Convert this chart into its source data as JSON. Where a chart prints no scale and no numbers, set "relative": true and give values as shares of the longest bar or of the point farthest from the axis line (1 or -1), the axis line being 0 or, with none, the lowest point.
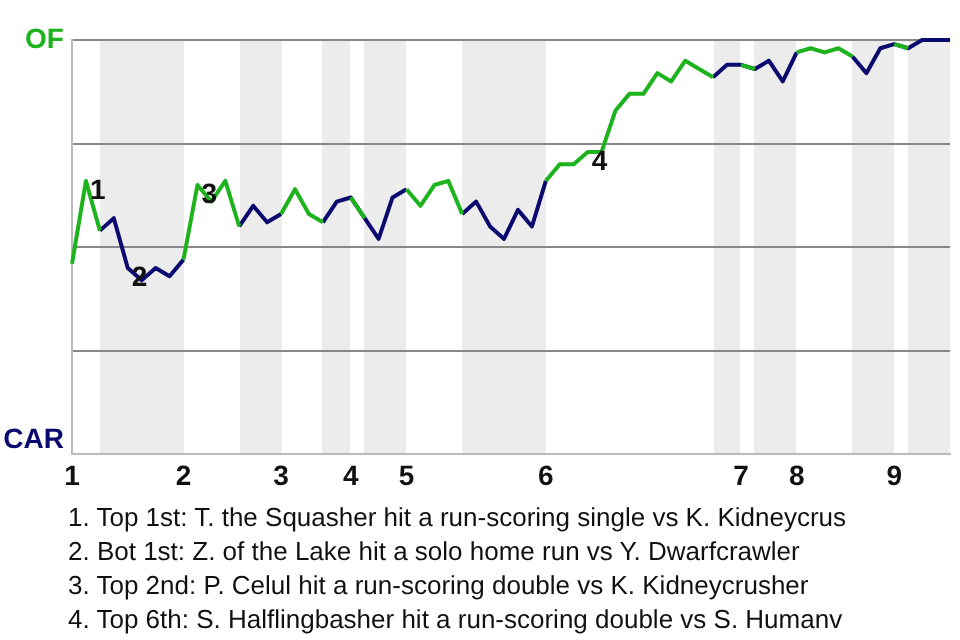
{
  "chart_data": {
    "type": "line",
    "relative": true,
    "categories": [
      "1",
      null,
      null,
      null,
      null,
      null,
      null,
      null,
      "2",
      null,
      null,
      null,
      null,
      null,
      null,
      "3",
      null,
      null,
      null,
      null,
      "4",
      null,
      null,
      null,
      "5",
      null,
      null,
      null,
      null,
      null,
      null,
      null,
      null,
      null,
      "6",
      null,
      null,
      null,
      null,
      null,
      null,
      null,
      null,
      null,
      null,
      null,
      null,
      null,
      "7",
      null,
      null,
      null,
      "8",
      null,
      null,
      null,
      null,
      null,
      null,
      "9",
      null,
      null,
      null,
      null
    ],
    "series": [
      {
        "color": "#1db31d",
        "values": [
          0.46,
          0.66,
          0.54,
          null,
          null,
          null,
          null,
          null,
          0.47,
          0.65,
          0.61,
          0.66,
          0.55,
          null,
          null,
          0.58,
          0.64,
          0.58,
          0.56,
          null,
          0.62,
          0.57,
          null,
          null,
          0.64,
          0.6,
          0.65,
          0.66,
          0.58,
          null,
          null,
          null,
          null,
          null,
          0.66,
          0.7,
          0.7,
          0.73,
          0.73,
          0.83,
          0.87,
          0.87,
          0.92,
          0.9,
          0.95,
          0.93,
          0.91,
          null,
          0.94,
          0.93,
          null,
          null,
          0.97,
          0.98,
          0.97,
          0.98,
          0.96,
          null,
          null,
          0.99,
          0.98,
          null,
          null,
          null
        ],
        "name": null
      },
      {
        "color": "#0a0a6e",
        "values": [
          null,
          null,
          0.54,
          0.57,
          0.45,
          0.42,
          0.45,
          0.43,
          0.47,
          null,
          null,
          null,
          0.55,
          0.6,
          0.56,
          0.58,
          null,
          null,
          0.56,
          0.61,
          0.62,
          0.57,
          0.52,
          0.62,
          0.64,
          null,
          null,
          null,
          0.58,
          0.61,
          0.55,
          0.52,
          0.59,
          0.55,
          0.66,
          null,
          null,
          null,
          null,
          null,
          null,
          null,
          null,
          null,
          null,
          null,
          0.91,
          0.94,
          0.94,
          0.93,
          0.95,
          0.9,
          0.97,
          null,
          null,
          null,
          0.96,
          0.92,
          0.98,
          0.99,
          0.98,
          1,
          1,
          1
        ],
        "name": null
      }
    ],
    "annotations": [
      "OF",
      "CAR",
      {
        "text": "1",
        "y": 0.66
      },
      {
        "text": "2",
        "y": 0.45
      },
      {
        "text": "3",
        "y": 0.65
      },
      {
        "text": "4",
        "y": 0.73
      },
      "1. Top 1st: T. the Squasher hit a run-scoring single vs K. Kidneycrus",
      "2. Bot 1st: Z. of the Lake hit a solo home run vs Y. Dwarfcrawler",
      "3. Top 2nd: P. Celul hit a run-scoring double vs K. Kidneycrusher",
      "4. Top 6th: S. Halflingbasher hit a run-scoring double vs S. Humanv"
    ],
    "grid": "y",
    "legend": false,
    "marker": "none",
    "line_style": "solid"
  }
}
